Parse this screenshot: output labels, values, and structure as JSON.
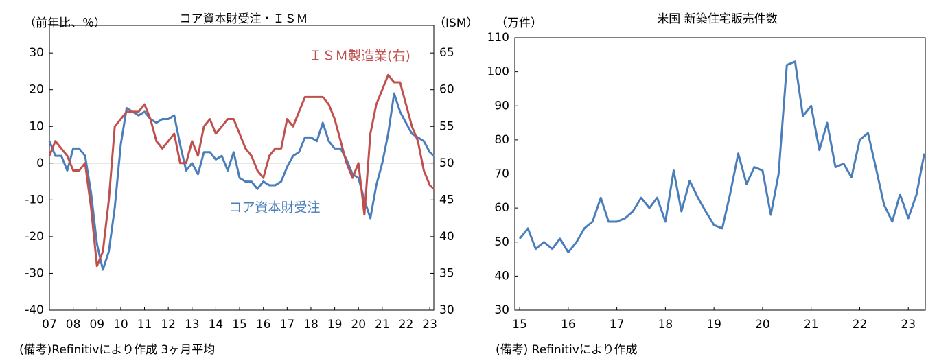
{
  "chart_data": [
    {
      "type": "line",
      "title": "コア資本財受注・ＩＳＭ",
      "y_label": "（前年比、％）",
      "y2_label": "（ISM）",
      "note": "(備考)Refinitivにより作成 3ヶ月平均",
      "x": [
        2007.0,
        2007.25,
        2007.5,
        2007.75,
        2008.0,
        2008.25,
        2008.5,
        2008.75,
        2009.0,
        2009.25,
        2009.5,
        2009.75,
        2010.0,
        2010.25,
        2010.5,
        2010.75,
        2011.0,
        2011.25,
        2011.5,
        2011.75,
        2012.0,
        2012.25,
        2012.5,
        2012.75,
        2013.0,
        2013.25,
        2013.5,
        2013.75,
        2014.0,
        2014.25,
        2014.5,
        2014.75,
        2015.0,
        2015.25,
        2015.5,
        2015.75,
        2016.0,
        2016.25,
        2016.5,
        2016.75,
        2017.0,
        2017.25,
        2017.5,
        2017.75,
        2018.0,
        2018.25,
        2018.5,
        2018.75,
        2019.0,
        2019.25,
        2019.5,
        2019.75,
        2020.0,
        2020.25,
        2020.5,
        2020.75,
        2021.0,
        2021.25,
        2021.5,
        2021.75,
        2022.0,
        2022.25,
        2022.5,
        2022.75,
        2023.0,
        2023.17
      ],
      "series": [
        {
          "name": "コア資本財受注",
          "color": "#4a7ebb",
          "axis": "y",
          "values": [
            6,
            2,
            2,
            -2,
            4,
            4,
            2,
            -8,
            -22,
            -29,
            -24,
            -12,
            5,
            15,
            14,
            13,
            14,
            12,
            11,
            12,
            12,
            13,
            5,
            -2,
            0,
            -3,
            3,
            3,
            1,
            2,
            -2,
            3,
            -4,
            -5,
            -5,
            -7,
            -5,
            -6,
            -6,
            -5,
            -1,
            2,
            3,
            7,
            7,
            6,
            11,
            6,
            4,
            4,
            1,
            -3,
            -4,
            -10,
            -15,
            -6,
            0,
            8,
            19,
            14,
            11,
            8,
            7,
            6,
            3,
            2
          ]
        },
        {
          "name": "ＩＳＭ製造業(右)",
          "color": "#c0504d",
          "axis": "y2",
          "values": [
            51,
            53,
            52,
            51,
            49,
            49,
            50,
            44,
            36,
            38,
            45,
            55,
            56,
            57,
            57,
            57,
            58,
            56,
            53,
            52,
            53,
            54,
            50,
            50,
            53,
            51,
            55,
            56,
            54,
            55,
            56,
            56,
            54,
            52,
            51,
            49,
            48,
            51,
            52,
            52,
            56,
            55,
            57,
            59,
            59,
            59,
            59,
            58,
            56,
            53,
            50,
            48,
            50,
            43,
            54,
            58,
            60,
            62,
            61,
            61,
            58,
            55,
            53,
            49,
            47,
            46.5
          ]
        }
      ],
      "xlim": [
        2007,
        2023.17
      ],
      "xticks": [
        {
          "value": 2007,
          "label": "07"
        },
        {
          "value": 2008,
          "label": "08"
        },
        {
          "value": 2009,
          "label": "09"
        },
        {
          "value": 2010,
          "label": "10"
        },
        {
          "value": 2011,
          "label": "11"
        },
        {
          "value": 2012,
          "label": "12"
        },
        {
          "value": 2013,
          "label": "13"
        },
        {
          "value": 2014,
          "label": "14"
        },
        {
          "value": 2015,
          "label": "15"
        },
        {
          "value": 2016,
          "label": "16"
        },
        {
          "value": 2017,
          "label": "17"
        },
        {
          "value": 2018,
          "label": "18"
        },
        {
          "value": 2019,
          "label": "19"
        },
        {
          "value": 2020,
          "label": "20"
        },
        {
          "value": 2021,
          "label": "21"
        },
        {
          "value": 2022,
          "label": "22"
        },
        {
          "value": 2023,
          "label": "23"
        }
      ],
      "ylim": [
        -40,
        37.5
      ],
      "yticks": [
        -40,
        -30,
        -20,
        -10,
        0,
        10,
        20,
        30
      ],
      "y2lim": [
        30,
        68.75
      ],
      "y2ticks": [
        30,
        35,
        40,
        45,
        50,
        55,
        60,
        65
      ],
      "zero_line": true
    },
    {
      "type": "line",
      "title": "米国 新築住宅販売件数",
      "y_label": "（万件）",
      "note": "(備考) Refinitivにより作成",
      "x": [
        2015.0,
        2015.17,
        2015.33,
        2015.5,
        2015.67,
        2015.83,
        2016.0,
        2016.17,
        2016.33,
        2016.5,
        2016.67,
        2016.83,
        2017.0,
        2017.17,
        2017.33,
        2017.5,
        2017.67,
        2017.83,
        2018.0,
        2018.17,
        2018.33,
        2018.5,
        2018.67,
        2018.83,
        2019.0,
        2019.17,
        2019.33,
        2019.5,
        2019.67,
        2019.83,
        2020.0,
        2020.17,
        2020.33,
        2020.5,
        2020.67,
        2020.83,
        2021.0,
        2021.17,
        2021.33,
        2021.5,
        2021.67,
        2021.83,
        2022.0,
        2022.17,
        2022.33,
        2022.5,
        2022.67,
        2022.83,
        2023.0,
        2023.17,
        2023.33
      ],
      "series": [
        {
          "name": "新築住宅販売件数",
          "color": "#4a7ebb",
          "axis": "y",
          "values": [
            51,
            54,
            48,
            50,
            48,
            51,
            47,
            50,
            54,
            56,
            63,
            56,
            56,
            57,
            59,
            63,
            60,
            63,
            56,
            71,
            59,
            68,
            63,
            59,
            55,
            54,
            64,
            76,
            67,
            72,
            71,
            58,
            70,
            102,
            103,
            87,
            90,
            77,
            85,
            72,
            73,
            69,
            80,
            82,
            72,
            61,
            56,
            64,
            57,
            64,
            76
          ]
        }
      ],
      "xlim": [
        2014.9,
        2023.35
      ],
      "xticks": [
        {
          "value": 2015,
          "label": "15"
        },
        {
          "value": 2016,
          "label": "16"
        },
        {
          "value": 2017,
          "label": "17"
        },
        {
          "value": 2018,
          "label": "18"
        },
        {
          "value": 2019,
          "label": "19"
        },
        {
          "value": 2020,
          "label": "20"
        },
        {
          "value": 2021,
          "label": "21"
        },
        {
          "value": 2022,
          "label": "22"
        },
        {
          "value": 2023,
          "label": "23"
        }
      ],
      "ylim": [
        30,
        110
      ],
      "yticks": [
        30,
        40,
        50,
        60,
        70,
        80,
        90,
        100,
        110
      ]
    }
  ]
}
